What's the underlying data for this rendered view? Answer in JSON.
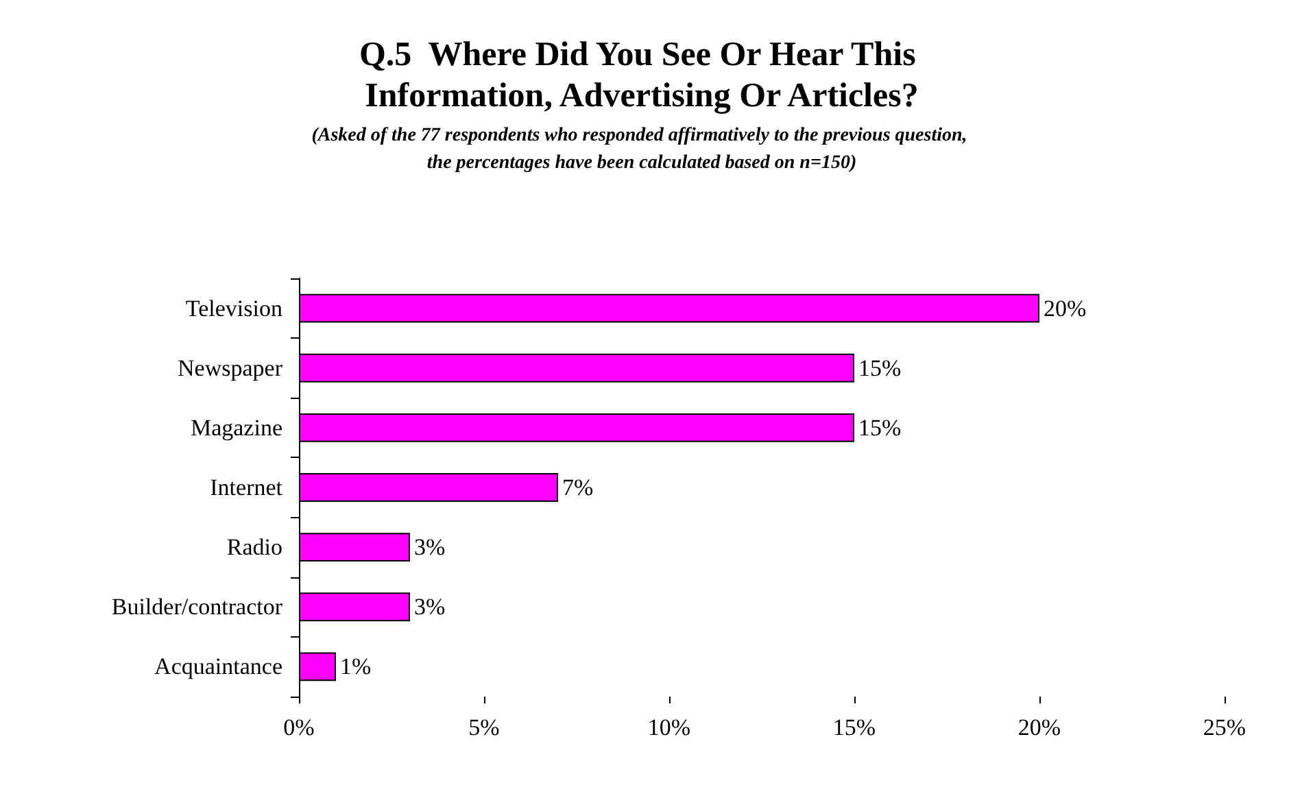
{
  "chart_data": {
    "type": "bar",
    "orientation": "horizontal",
    "title": "Q.5  Where Did You See Or Hear This Information, Advertising Or Articles?",
    "subtitle": "(Asked of the 77 respondents who responded affirmatively to the previous question, the percentages have been calculated based on n=150)",
    "categories": [
      "Television",
      "Newspaper",
      "Magazine",
      "Internet",
      "Radio",
      "Builder/contractor",
      "Acquaintance"
    ],
    "values": [
      20,
      15,
      15,
      7,
      3,
      3,
      1
    ],
    "value_labels": [
      "20%",
      "15%",
      "15%",
      "7%",
      "3%",
      "3%",
      "1%"
    ],
    "color": "#ff00ff",
    "xlim": [
      0,
      25
    ],
    "xticks": [
      {
        "value": 0,
        "label": "0%"
      },
      {
        "value": 5,
        "label": "5%"
      },
      {
        "value": 10,
        "label": "10%"
      },
      {
        "value": 15,
        "label": "15%"
      },
      {
        "value": 20,
        "label": "20%"
      },
      {
        "value": 25,
        "label": "25%"
      }
    ],
    "grid": false
  }
}
